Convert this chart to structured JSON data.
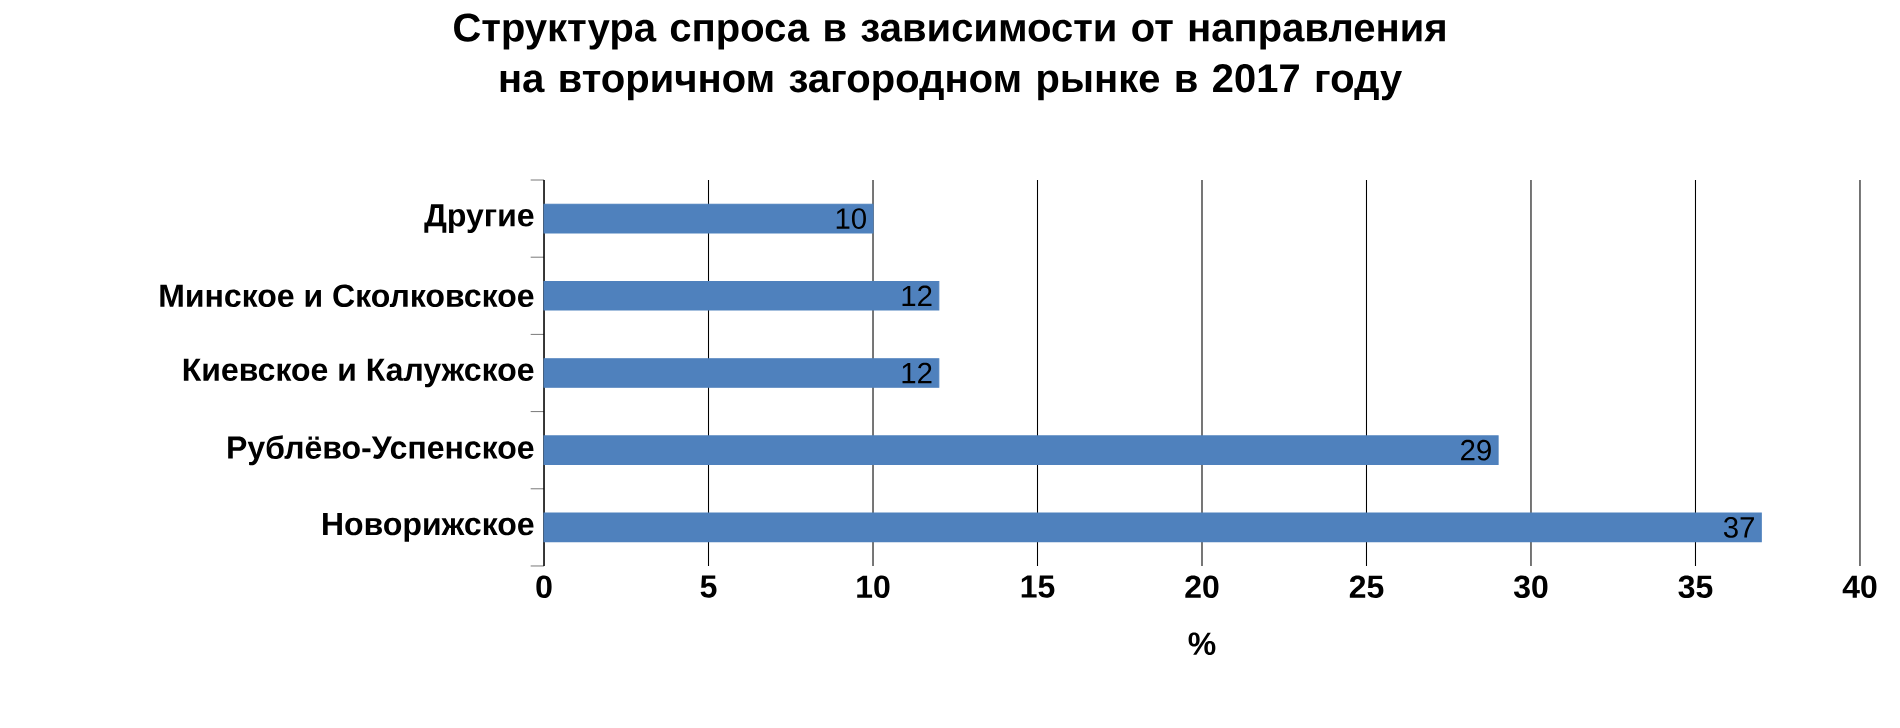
{
  "chart_data": {
    "type": "bar",
    "orientation": "horizontal",
    "title": "Структура спроса в зависимости от направления на вторичном загородном рынке в 2017 году",
    "xlabel": "%",
    "categories": [
      "Другие",
      "Минское и Сколковское",
      "Киевское и Калужское",
      "Рублёво-Успенское",
      "Новорижское"
    ],
    "values": [
      10,
      12,
      12,
      29,
      37
    ],
    "color": "#4f81bd",
    "xlim": [
      0,
      40
    ],
    "xticks": [
      0,
      5,
      10,
      15,
      20,
      25,
      30,
      35,
      40
    ],
    "grid": "x",
    "data_labels": true
  }
}
